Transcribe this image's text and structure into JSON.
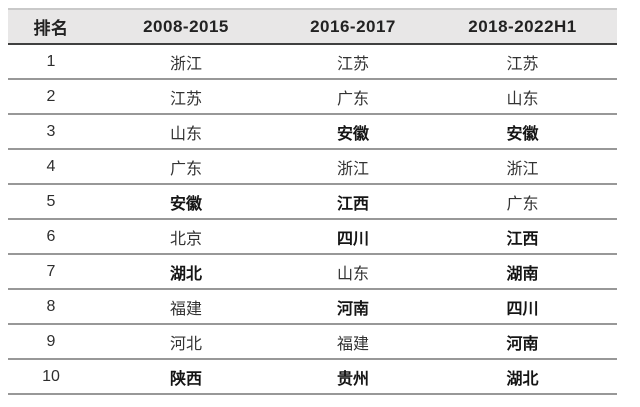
{
  "chart_data": {
    "type": "table",
    "columns": [
      "排名",
      "2008-2015",
      "2016-2017",
      "2018-2022H1"
    ],
    "rows": [
      {
        "rank": "1",
        "cells": [
          {
            "text": "浙江",
            "bold": false
          },
          {
            "text": "江苏",
            "bold": false
          },
          {
            "text": "江苏",
            "bold": false
          }
        ]
      },
      {
        "rank": "2",
        "cells": [
          {
            "text": "江苏",
            "bold": false
          },
          {
            "text": "广东",
            "bold": false
          },
          {
            "text": "山东",
            "bold": false
          }
        ]
      },
      {
        "rank": "3",
        "cells": [
          {
            "text": "山东",
            "bold": false
          },
          {
            "text": "安徽",
            "bold": true
          },
          {
            "text": "安徽",
            "bold": true
          }
        ]
      },
      {
        "rank": "4",
        "cells": [
          {
            "text": "广东",
            "bold": false
          },
          {
            "text": "浙江",
            "bold": false
          },
          {
            "text": "浙江",
            "bold": false
          }
        ]
      },
      {
        "rank": "5",
        "cells": [
          {
            "text": "安徽",
            "bold": true
          },
          {
            "text": "江西",
            "bold": true
          },
          {
            "text": "广东",
            "bold": false
          }
        ]
      },
      {
        "rank": "6",
        "cells": [
          {
            "text": "北京",
            "bold": false
          },
          {
            "text": "四川",
            "bold": true
          },
          {
            "text": "江西",
            "bold": true
          }
        ]
      },
      {
        "rank": "7",
        "cells": [
          {
            "text": "湖北",
            "bold": true
          },
          {
            "text": "山东",
            "bold": false
          },
          {
            "text": "湖南",
            "bold": true
          }
        ]
      },
      {
        "rank": "8",
        "cells": [
          {
            "text": "福建",
            "bold": false
          },
          {
            "text": "河南",
            "bold": true
          },
          {
            "text": "四川",
            "bold": true
          }
        ]
      },
      {
        "rank": "9",
        "cells": [
          {
            "text": "河北",
            "bold": false
          },
          {
            "text": "福建",
            "bold": false
          },
          {
            "text": "河南",
            "bold": true
          }
        ]
      },
      {
        "rank": "10",
        "cells": [
          {
            "text": "陕西",
            "bold": true
          },
          {
            "text": "贵州",
            "bold": true
          },
          {
            "text": "湖北",
            "bold": true
          }
        ]
      }
    ]
  },
  "colors": {
    "header_background": "#e8e7e7",
    "header_border_top": "#c9c9c9",
    "header_border_bottom": "#404040",
    "row_divider": "#989898",
    "text": "#333333",
    "bold_text": "#151515",
    "page_background": "#ffffff"
  }
}
